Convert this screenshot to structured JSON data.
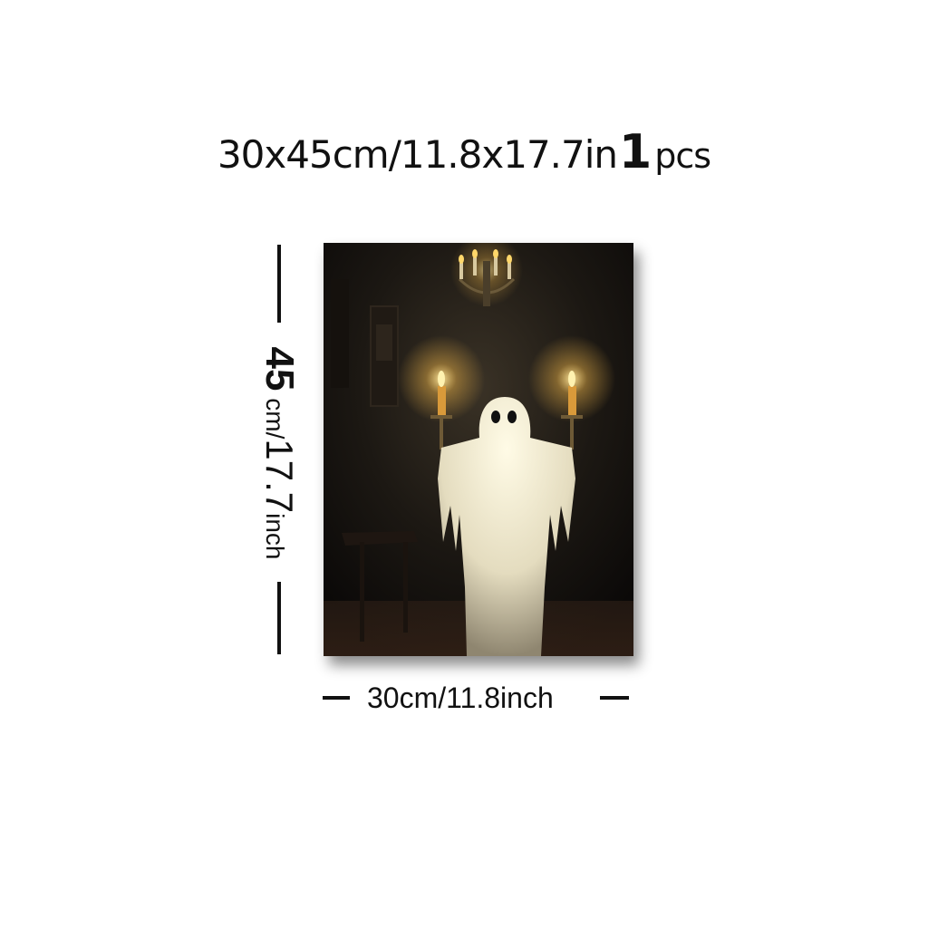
{
  "title": {
    "size_text": "30x45cm/11.8x17.7in",
    "quantity": "1",
    "unit": "pcs"
  },
  "vertical_dimension": {
    "number": "45",
    "unit_cm": "cm/",
    "inches": "17.7",
    "unit_inch": "inch"
  },
  "horizontal_dimension": {
    "label": "30cm/11.8inch"
  },
  "colors": {
    "background": "#ffffff",
    "text": "#111111",
    "canvas_dark": "#1a1612",
    "ghost": "#e9e4d2",
    "flame": "#ffcc55"
  },
  "artwork": {
    "subject": "ghost holding two candles under a chandelier"
  }
}
